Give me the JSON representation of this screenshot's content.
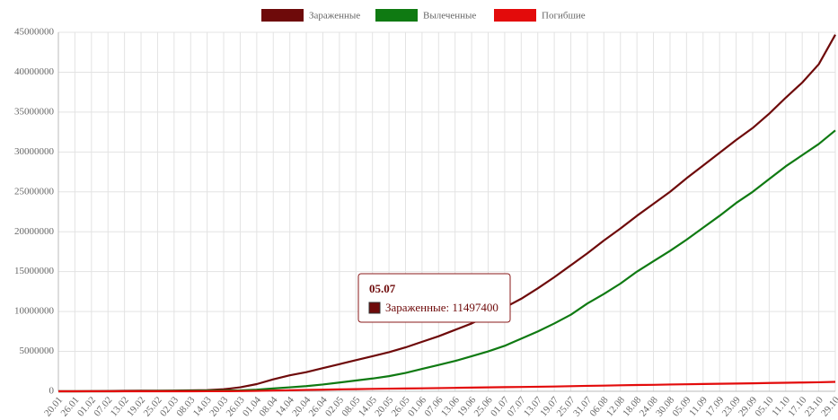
{
  "chart_data": {
    "type": "line",
    "categories": [
      "20.01",
      "26.01",
      "01.02",
      "07.02",
      "13.02",
      "19.02",
      "25.02",
      "02.03",
      "08.03",
      "14.03",
      "20.03",
      "26.03",
      "01.04",
      "08.04",
      "14.04",
      "20.04",
      "26.04",
      "02.05",
      "08.05",
      "14.05",
      "20.05",
      "26.05",
      "01.06",
      "07.06",
      "13.06",
      "19.06",
      "25.06",
      "01.07",
      "07.07",
      "13.07",
      "19.07",
      "25.07",
      "31.07",
      "06.08",
      "12.08",
      "18.08",
      "24.08",
      "30.08",
      "05.09",
      "11.09",
      "17.09",
      "23.09",
      "29.09",
      "05.10",
      "11.10",
      "17.10",
      "23.10",
      "29.10"
    ],
    "series": [
      {
        "name": "Зараженные",
        "color": "#6e0a0a",
        "values": [
          0,
          2000,
          12000,
          31000,
          60000,
          75000,
          80000,
          89000,
          110000,
          150000,
          250000,
          500000,
          900000,
          1500000,
          2000000,
          2400000,
          2900000,
          3400000,
          3900000,
          4400000,
          4900000,
          5500000,
          6200000,
          6900000,
          7700000,
          8500000,
          9500000,
          10500000,
          11600000,
          12900000,
          14300000,
          15800000,
          17300000,
          18900000,
          20400000,
          22000000,
          23500000,
          25000000,
          26700000,
          28300000,
          29900000,
          31500000,
          33000000,
          34800000,
          36800000,
          38700000,
          41000000,
          44700000
        ]
      },
      {
        "name": "Вылеченные",
        "color": "#0f7a12",
        "values": [
          0,
          0,
          300,
          1000,
          5000,
          15000,
          30000,
          50000,
          60000,
          70000,
          90000,
          120000,
          200000,
          350000,
          500000,
          650000,
          850000,
          1100000,
          1350000,
          1600000,
          1900000,
          2300000,
          2800000,
          3300000,
          3800000,
          4400000,
          5000000,
          5700000,
          6600000,
          7500000,
          8500000,
          9600000,
          11000000,
          12200000,
          13500000,
          15000000,
          16300000,
          17600000,
          19000000,
          20500000,
          22000000,
          23600000,
          25000000,
          26600000,
          28200000,
          29600000,
          31000000,
          32700000
        ]
      },
      {
        "name": "Погибшие",
        "color": "#e30b0b",
        "values": [
          0,
          56,
          259,
          638,
          1369,
          2009,
          2700,
          3000,
          3600,
          5800,
          11000,
          24000,
          50000,
          90000,
          125000,
          170000,
          200000,
          240000,
          270000,
          300000,
          330000,
          350000,
          375000,
          400000,
          430000,
          460000,
          490000,
          520000,
          540000,
          570000,
          600000,
          640000,
          680000,
          710000,
          750000,
          790000,
          810000,
          850000,
          880000,
          910000,
          940000,
          970000,
          1000000,
          1040000,
          1070000,
          1100000,
          1130000,
          1180000
        ]
      }
    ],
    "ylim": [
      0,
      45000000
    ],
    "yticks": [
      0,
      5000000,
      10000000,
      15000000,
      20000000,
      25000000,
      30000000,
      35000000,
      40000000,
      45000000
    ],
    "grid": true,
    "legend": "top",
    "tooltip": {
      "title": "05.07",
      "text": "Зараженные: 11497400"
    }
  }
}
